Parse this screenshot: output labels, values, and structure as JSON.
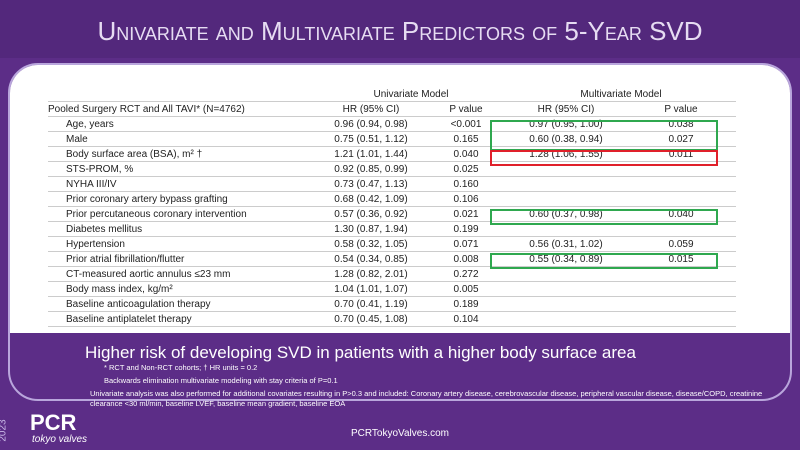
{
  "header": {
    "title": "Univariate and Multivariate Predictors of 5-Year SVD"
  },
  "table": {
    "group_headers": [
      "Univariate Model",
      "Multivariate Model"
    ],
    "column_headers": [
      "Pooled Surgery RCT and All TAVI* (N=4762)",
      "HR (95% CI)",
      "P value",
      "HR (95% CI)",
      "P value"
    ],
    "rows": [
      {
        "label": "Age, years",
        "uni_hr": "0.96 (0.94, 0.98)",
        "uni_p": "<0.001",
        "multi_hr": "0.97 (0.95, 1.00)",
        "multi_p": "0.038"
      },
      {
        "label": "Male",
        "uni_hr": "0.75 (0.51, 1.12)",
        "uni_p": "0.165",
        "multi_hr": "0.60 (0.38, 0.94)",
        "multi_p": "0.027"
      },
      {
        "label": "Body surface area (BSA), m² †",
        "uni_hr": "1.21 (1.01, 1.44)",
        "uni_p": "0.040",
        "multi_hr": "1.28 (1.06, 1.55)",
        "multi_p": "0.011"
      },
      {
        "label": "STS-PROM, %",
        "uni_hr": "0.92 (0.85, 0.99)",
        "uni_p": "0.025"
      },
      {
        "label": "NYHA III/IV",
        "uni_hr": "0.73 (0.47, 1.13)",
        "uni_p": "0.160"
      },
      {
        "label": "Prior coronary artery bypass grafting",
        "uni_hr": "0.68 (0.42, 1.09)",
        "uni_p": "0.106"
      },
      {
        "label": "Prior percutaneous coronary intervention",
        "uni_hr": "0.57 (0.36, 0.92)",
        "uni_p": "0.021",
        "multi_hr": "0.60 (0.37, 0.98)",
        "multi_p": "0.040"
      },
      {
        "label": "Diabetes mellitus",
        "uni_hr": "1.30 (0.87, 1.94)",
        "uni_p": "0.199"
      },
      {
        "label": "Hypertension",
        "uni_hr": "0.58 (0.32, 1.05)",
        "uni_p": "0.071",
        "multi_hr": "0.56 (0.31, 1.02)",
        "multi_p": "0.059"
      },
      {
        "label": "Prior atrial fibrillation/flutter",
        "uni_hr": "0.54 (0.34, 0.85)",
        "uni_p": "0.008",
        "multi_hr": "0.55 (0.34, 0.89)",
        "multi_p": "0.015"
      },
      {
        "label": "CT-measured aortic annulus ≤23 mm",
        "uni_hr": "1.28 (0.82, 2.01)",
        "uni_p": "0.272"
      },
      {
        "label": "Body mass index, kg/m²",
        "uni_hr": "1.04 (1.01, 1.07)",
        "uni_p": "0.005"
      },
      {
        "label": "Baseline anticoagulation therapy",
        "uni_hr": "0.70 (0.41, 1.19)",
        "uni_p": "0.189"
      },
      {
        "label": "Baseline antiplatelet therapy",
        "uni_hr": "0.70 (0.45, 1.08)",
        "uni_p": "0.104"
      }
    ]
  },
  "callout": "Higher risk of developing SVD in patients with a higher body surface area",
  "footnotes": [
    "* RCT and Non-RCT cohorts; † HR units = 0.2",
    "Backwards elimination multivariate modeling with stay criteria of P=0.1",
    "Univariate analysis was also performed for additional covariates resulting in P>0.3 and included: Coronary artery disease, cerebrovascular disease, peripheral vascular disease, disease/COPD, creatinine clearance <30 ml/min, baseline LVEF, baseline mean gradient, baseline EOA"
  ],
  "footer": {
    "year": "2023",
    "logo": "PCR",
    "logo_sub": "tokyo valves",
    "url": "PCRTokyoValves.com"
  }
}
